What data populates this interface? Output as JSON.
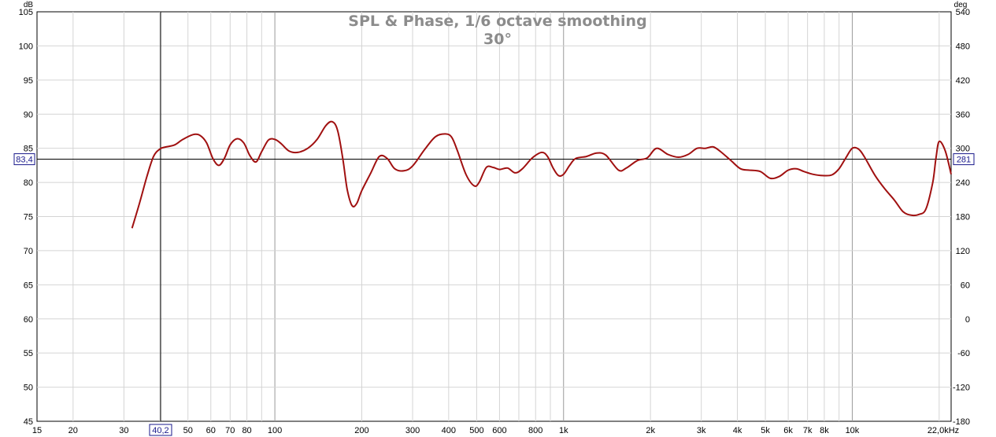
{
  "chart_data": {
    "type": "line",
    "title": "SPL & Phase, 1/6 octave smoothing",
    "subtitle": "30°",
    "y_unit": "dB",
    "y2_unit": "deg",
    "x_scale": "log",
    "xlim": [
      15,
      22000
    ],
    "ylim": [
      45,
      105
    ],
    "y2lim": [
      -180,
      540
    ],
    "grid": true,
    "x_ticks": [
      {
        "v": 15,
        "label": "15"
      },
      {
        "v": 20,
        "label": "20"
      },
      {
        "v": 30,
        "label": "30"
      },
      {
        "v": 50,
        "label": "50"
      },
      {
        "v": 60,
        "label": "60"
      },
      {
        "v": 70,
        "label": "70"
      },
      {
        "v": 80,
        "label": "80"
      },
      {
        "v": 100,
        "label": "100"
      },
      {
        "v": 200,
        "label": "200"
      },
      {
        "v": 300,
        "label": "300"
      },
      {
        "v": 400,
        "label": "400"
      },
      {
        "v": 500,
        "label": "500"
      },
      {
        "v": 600,
        "label": "600"
      },
      {
        "v": 800,
        "label": "800"
      },
      {
        "v": 1000,
        "label": "1k"
      },
      {
        "v": 2000,
        "label": "2k"
      },
      {
        "v": 3000,
        "label": "3k"
      },
      {
        "v": 4000,
        "label": "4k"
      },
      {
        "v": 5000,
        "label": "5k"
      },
      {
        "v": 6000,
        "label": "6k"
      },
      {
        "v": 7000,
        "label": "7k"
      },
      {
        "v": 8000,
        "label": "8k"
      },
      {
        "v": 10000,
        "label": "10k"
      },
      {
        "v": 22000,
        "label": "22,0kHz"
      }
    ],
    "y_ticks": [
      "105",
      "100",
      "95",
      "90",
      "85",
      "80",
      "75",
      "70",
      "65",
      "60",
      "55",
      "50",
      "45"
    ],
    "y2_ticks": [
      "540",
      "480",
      "420",
      "360",
      "300",
      "240",
      "180",
      "120",
      "60",
      "0",
      "-60",
      "-120",
      "-180"
    ],
    "cursor": {
      "x": 40.2,
      "x_label": "40,2",
      "y": 83.4,
      "y_label": "83,4",
      "y2_label": "281"
    },
    "series": [
      {
        "color": "#a01010",
        "x": [
          32,
          34,
          36,
          38,
          40,
          42,
          45,
          48,
          52,
          55,
          58,
          61,
          64,
          67,
          70,
          74,
          78,
          82,
          86,
          90,
          95,
          100,
          105,
          112,
          120,
          130,
          140,
          150,
          158,
          165,
          172,
          178,
          185,
          192,
          200,
          215,
          230,
          245,
          260,
          280,
          300,
          330,
          360,
          390,
          410,
          430,
          460,
          490,
          510,
          540,
          570,
          600,
          640,
          680,
          720,
          780,
          840,
          880,
          920,
          960,
          1000,
          1050,
          1100,
          1200,
          1300,
          1400,
          1550,
          1650,
          1800,
          1950,
          2100,
          2300,
          2500,
          2700,
          2900,
          3100,
          3300,
          3500,
          3800,
          4100,
          4400,
          4800,
          5200,
          5600,
          6000,
          6400,
          6800,
          7300,
          7900,
          8500,
          9000,
          9500,
          10000,
          10500,
          11000,
          12000,
          13000,
          14000,
          15000,
          16000,
          17000,
          18000,
          19000,
          19500,
          20000,
          21000,
          22000
        ],
        "values": [
          73.3,
          77.0,
          80.8,
          83.8,
          84.9,
          85.2,
          85.5,
          86.3,
          87.0,
          86.9,
          85.8,
          83.5,
          82.5,
          83.6,
          85.5,
          86.4,
          85.8,
          83.9,
          83.0,
          84.5,
          86.2,
          86.3,
          85.7,
          84.6,
          84.4,
          85.0,
          86.3,
          88.3,
          88.9,
          87.6,
          83.4,
          79.0,
          76.6,
          76.9,
          78.8,
          81.4,
          83.8,
          83.5,
          82.0,
          81.7,
          82.4,
          84.8,
          86.7,
          87.1,
          86.6,
          84.5,
          81.1,
          79.5,
          80.0,
          82.2,
          82.2,
          81.9,
          82.1,
          81.4,
          82.0,
          83.6,
          84.4,
          83.8,
          82.1,
          81.0,
          81.2,
          82.5,
          83.5,
          83.8,
          84.3,
          84.0,
          81.8,
          82.1,
          83.2,
          83.6,
          85.0,
          84.1,
          83.7,
          84.1,
          85.0,
          85.0,
          85.2,
          84.5,
          83.2,
          82.0,
          81.8,
          81.6,
          80.6,
          80.9,
          81.8,
          82.0,
          81.6,
          81.2,
          81.0,
          81.1,
          82.0,
          83.6,
          85.0,
          84.9,
          83.8,
          81.0,
          79.0,
          77.4,
          75.7,
          75.2,
          75.3,
          76.1,
          80.0,
          83.6,
          86.0,
          84.6,
          81.2
        ]
      }
    ]
  }
}
